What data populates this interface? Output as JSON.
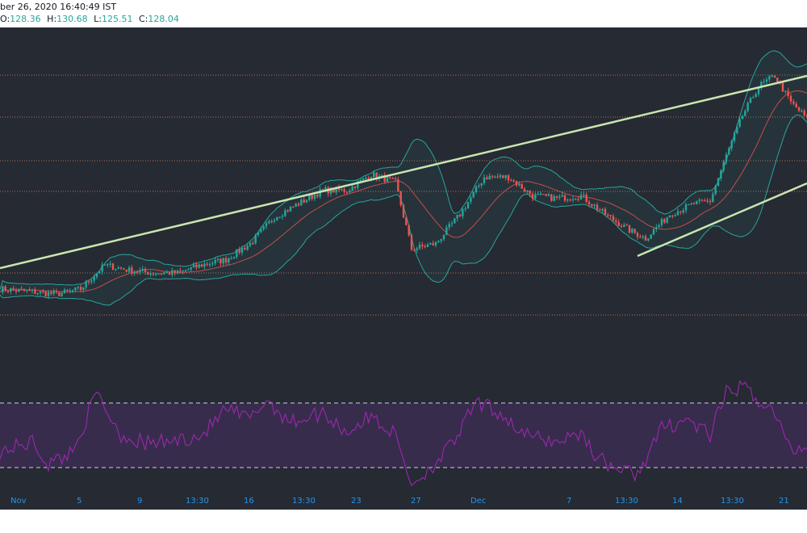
{
  "header": {
    "datetime": "ber 26, 2020 16:40:49 IST",
    "ohlc": [
      {
        "label": "O:",
        "value": "128.36"
      },
      {
        "label": "H:",
        "value": "130.68"
      },
      {
        "label": "L:",
        "value": "125.51"
      },
      {
        "label": "C:",
        "value": "128.04"
      }
    ]
  },
  "colors": {
    "background": "#262a33",
    "up_candle": "#26a69a",
    "down_candle": "#ef5350",
    "trendline": "#c8e6b0",
    "bollinger_band": "#26a69a",
    "bollinger_basis": "#ef5350",
    "rsi_line": "#9c27b0",
    "rsi_band_fill": "#3a2c4f",
    "horizontal_levels": "#e08a5a",
    "axis_labels": "#2196f3"
  },
  "chart_data": {
    "type": "candlestick",
    "indicators": [
      "Bollinger Bands",
      "RSI"
    ],
    "horizontal_levels": 6,
    "trendlines": 2,
    "x_tick_labels": [
      "Nov",
      "5",
      "9",
      "13:30",
      "16",
      "13:30",
      "23",
      "27",
      "Dec",
      "7",
      "13:30",
      "14",
      "13:30",
      "21"
    ],
    "price_path": [
      {
        "t": 0,
        "close": 0.14
      },
      {
        "t": 0.04,
        "close": 0.13
      },
      {
        "t": 0.07,
        "close": 0.12
      },
      {
        "t": 0.1,
        "close": 0.14
      },
      {
        "t": 0.13,
        "close": 0.23
      },
      {
        "t": 0.16,
        "close": 0.21
      },
      {
        "t": 0.19,
        "close": 0.2
      },
      {
        "t": 0.22,
        "close": 0.2
      },
      {
        "t": 0.25,
        "close": 0.23
      },
      {
        "t": 0.28,
        "close": 0.25
      },
      {
        "t": 0.31,
        "close": 0.31
      },
      {
        "t": 0.34,
        "close": 0.41
      },
      {
        "t": 0.37,
        "close": 0.46
      },
      {
        "t": 0.4,
        "close": 0.51
      },
      {
        "t": 0.43,
        "close": 0.51
      },
      {
        "t": 0.46,
        "close": 0.57
      },
      {
        "t": 0.49,
        "close": 0.54
      },
      {
        "t": 0.51,
        "close": 0.29
      },
      {
        "t": 0.54,
        "close": 0.31
      },
      {
        "t": 0.57,
        "close": 0.42
      },
      {
        "t": 0.6,
        "close": 0.56
      },
      {
        "t": 0.63,
        "close": 0.56
      },
      {
        "t": 0.66,
        "close": 0.49
      },
      {
        "t": 0.69,
        "close": 0.48
      },
      {
        "t": 0.72,
        "close": 0.49
      },
      {
        "t": 0.75,
        "close": 0.42
      },
      {
        "t": 0.78,
        "close": 0.36
      },
      {
        "t": 0.8,
        "close": 0.33
      },
      {
        "t": 0.83,
        "close": 0.42
      },
      {
        "t": 0.86,
        "close": 0.46
      },
      {
        "t": 0.88,
        "close": 0.47
      },
      {
        "t": 0.9,
        "close": 0.64
      },
      {
        "t": 0.92,
        "close": 0.79
      },
      {
        "t": 0.94,
        "close": 0.9
      },
      {
        "t": 0.96,
        "close": 0.94
      },
      {
        "t": 0.98,
        "close": 0.84
      },
      {
        "t": 1.0,
        "close": 0.78
      }
    ],
    "rsi_path": [
      {
        "t": 0,
        "v": 40
      },
      {
        "t": 0.04,
        "v": 46
      },
      {
        "t": 0.06,
        "v": 32
      },
      {
        "t": 0.09,
        "v": 40
      },
      {
        "t": 0.12,
        "v": 76
      },
      {
        "t": 0.15,
        "v": 50
      },
      {
        "t": 0.18,
        "v": 45
      },
      {
        "t": 0.21,
        "v": 46
      },
      {
        "t": 0.25,
        "v": 50
      },
      {
        "t": 0.28,
        "v": 66
      },
      {
        "t": 0.31,
        "v": 60
      },
      {
        "t": 0.33,
        "v": 72
      },
      {
        "t": 0.36,
        "v": 58
      },
      {
        "t": 0.4,
        "v": 64
      },
      {
        "t": 0.43,
        "v": 52
      },
      {
        "t": 0.46,
        "v": 62
      },
      {
        "t": 0.49,
        "v": 50
      },
      {
        "t": 0.51,
        "v": 20
      },
      {
        "t": 0.53,
        "v": 28
      },
      {
        "t": 0.56,
        "v": 44
      },
      {
        "t": 0.59,
        "v": 70
      },
      {
        "t": 0.62,
        "v": 64
      },
      {
        "t": 0.65,
        "v": 50
      },
      {
        "t": 0.69,
        "v": 46
      },
      {
        "t": 0.72,
        "v": 52
      },
      {
        "t": 0.74,
        "v": 36
      },
      {
        "t": 0.77,
        "v": 28
      },
      {
        "t": 0.79,
        "v": 26
      },
      {
        "t": 0.82,
        "v": 54
      },
      {
        "t": 0.85,
        "v": 60
      },
      {
        "t": 0.88,
        "v": 50
      },
      {
        "t": 0.9,
        "v": 76
      },
      {
        "t": 0.92,
        "v": 80
      },
      {
        "t": 0.94,
        "v": 72
      },
      {
        "t": 0.96,
        "v": 64
      },
      {
        "t": 0.98,
        "v": 40
      },
      {
        "t": 1.0,
        "v": 44
      }
    ]
  }
}
